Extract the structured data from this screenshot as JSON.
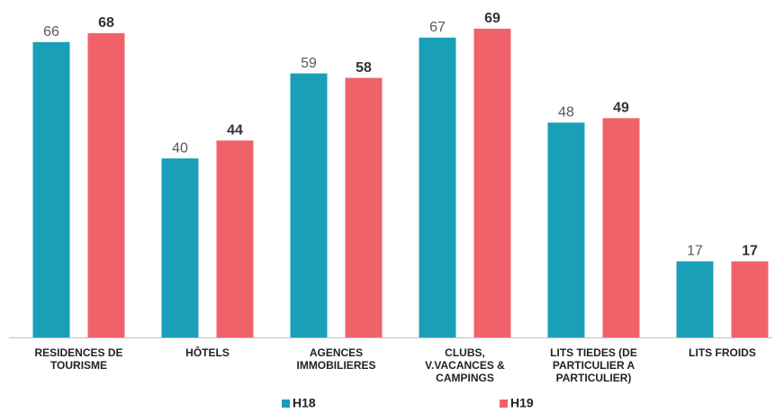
{
  "chart_data": {
    "type": "bar",
    "categories": [
      "RESIDENCES DE TOURISME",
      "HÔTELS",
      "AGENCES IMMOBILIERES",
      "CLUBS, V.VACANCES & CAMPINGS",
      "LITS TIEDES (DE PARTICULIER A PARTICULIER)",
      "LITS FROIDS"
    ],
    "series": [
      {
        "name": "H18",
        "color": "#1a9fb8",
        "values": [
          66,
          40,
          59,
          67,
          48,
          17
        ]
      },
      {
        "name": "H19",
        "color": "#f0626a",
        "values": [
          68,
          44,
          58,
          69,
          49,
          17
        ]
      }
    ],
    "ylim": [
      0,
      75
    ],
    "grid": false,
    "legend": "bottom"
  }
}
